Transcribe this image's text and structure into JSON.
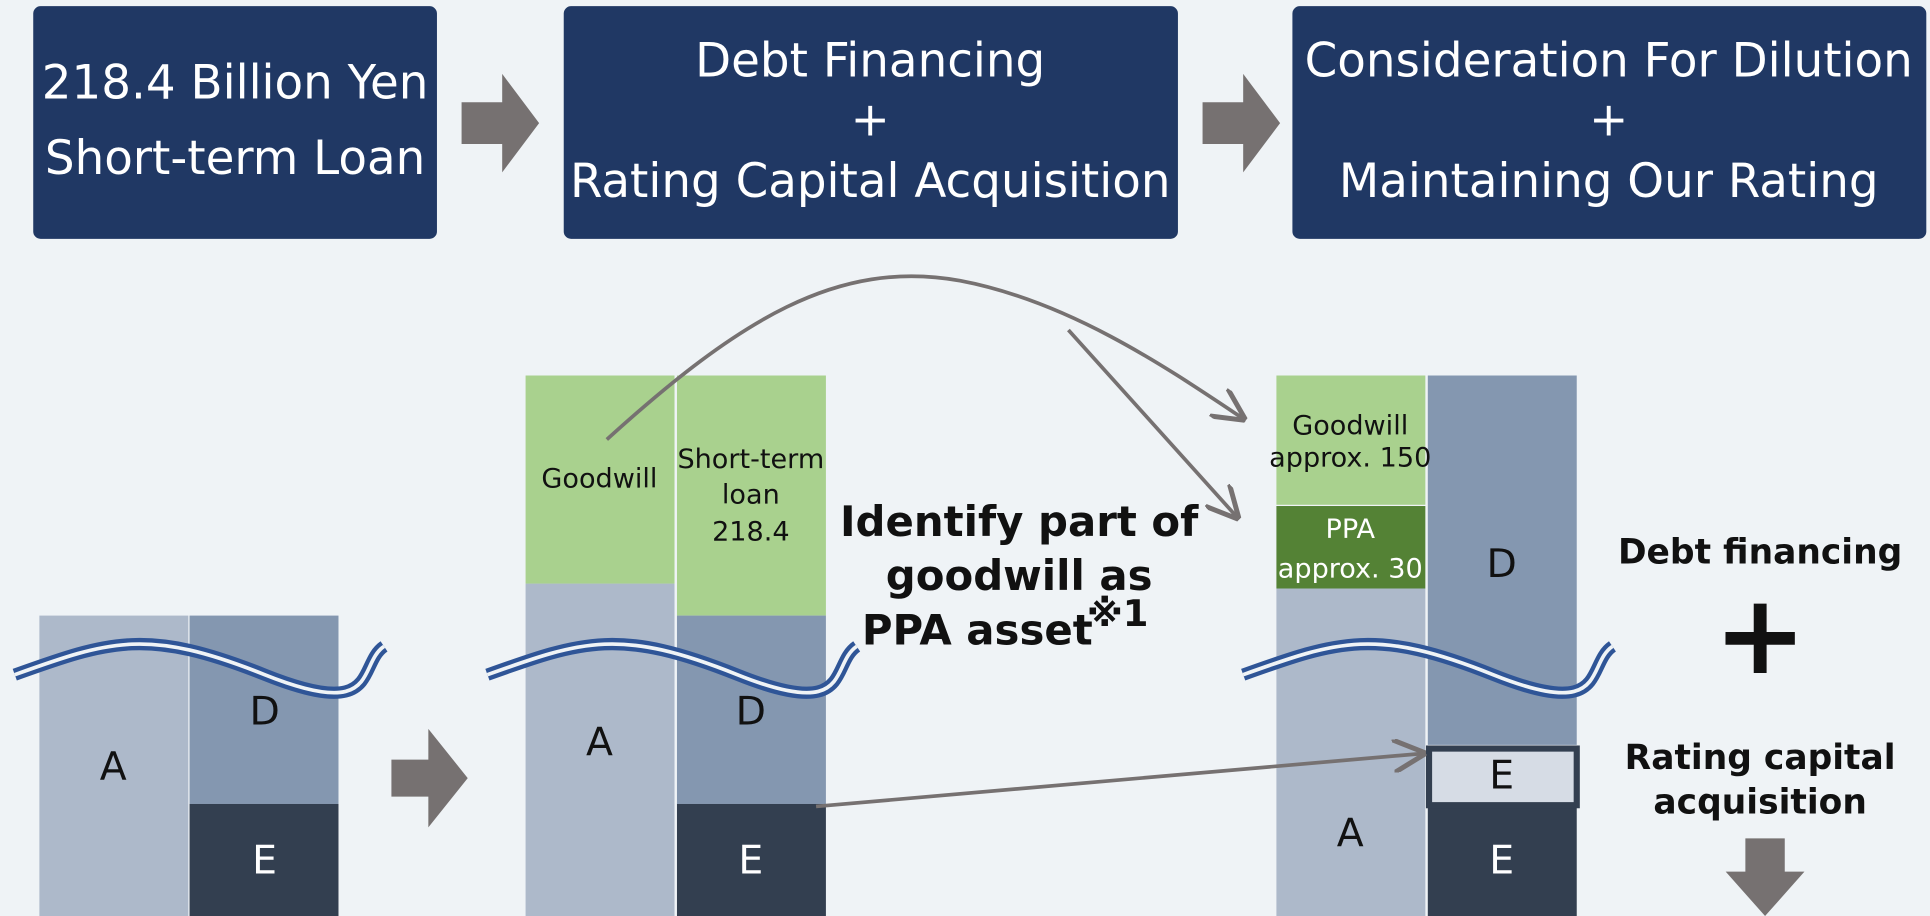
{
  "steps": [
    {
      "lines": [
        "218.4 Billion Yen",
        "Short-term Loan"
      ]
    },
    {
      "lines": [
        "Debt Financing",
        "+",
        "Rating Capital Acquisition"
      ]
    },
    {
      "lines": [
        "Consideration For Dilution",
        "+",
        "Maintaining Our Rating"
      ]
    }
  ],
  "before": {
    "assets": "A",
    "debt": "D",
    "equity": "E"
  },
  "after_loan": {
    "goodwill": "Goodwill",
    "loan": [
      "Short-term",
      "loan",
      "218.4"
    ],
    "assets": "A",
    "debt": "D",
    "equity": "E"
  },
  "note": {
    "lines": [
      "Identify part of",
      "goodwill as",
      "PPA asset"
    ],
    "mark": "※1"
  },
  "after_ppa": {
    "goodwill": [
      "Goodwill",
      "approx. 150"
    ],
    "ppa": [
      "PPA",
      "approx. 30"
    ],
    "assets": "A",
    "debt": "D",
    "new_equity": "E",
    "equity": "E"
  },
  "outcome": {
    "debt": "Debt financing",
    "plus": "+",
    "rating": [
      "Rating capital",
      "acquisition"
    ]
  }
}
